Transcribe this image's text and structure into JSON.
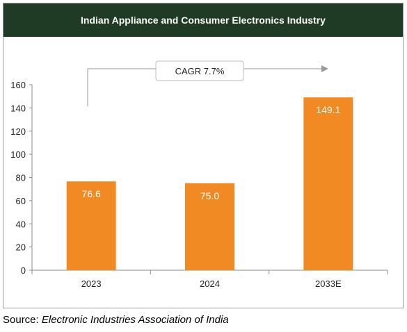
{
  "chart_data": {
    "type": "bar",
    "title": "Indian Appliance and Consumer Electronics Industry",
    "categories": [
      "2023",
      "2024",
      "2033E"
    ],
    "values": [
      76.6,
      75.0,
      149.1
    ],
    "value_labels": [
      "76.6",
      "75.0",
      "149.1"
    ],
    "yticks": [
      "0",
      "20",
      "40",
      "60",
      "80",
      "100",
      "120",
      "140",
      "160"
    ],
    "ylim": [
      0,
      160
    ],
    "grid": false,
    "legend": "none",
    "bar_color": "#f28a24",
    "annotation": "CAGR 7.7%"
  },
  "source": {
    "prefix": "Source: ",
    "name": "Electronic Industries Association of India"
  }
}
